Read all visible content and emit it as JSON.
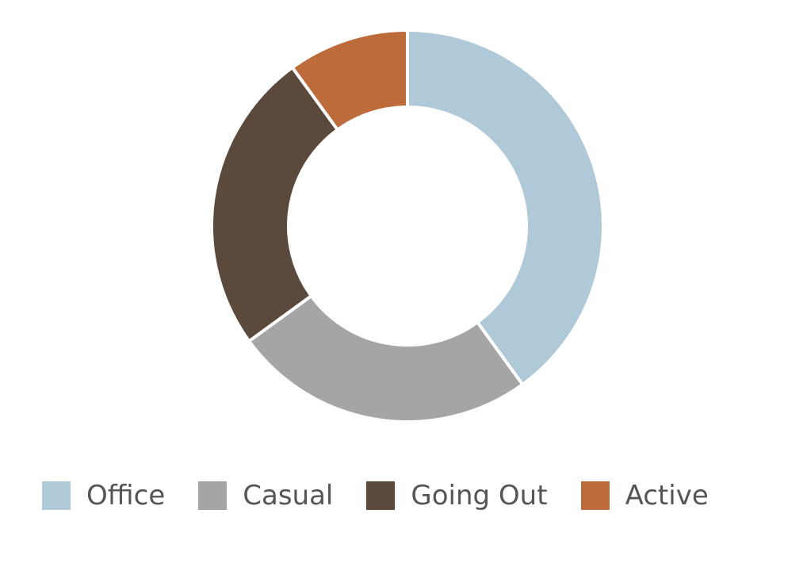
{
  "chart_data": {
    "type": "donut",
    "categories": [
      "Office",
      "Casual",
      "Going Out",
      "Active"
    ],
    "values": [
      40,
      25,
      25,
      10
    ],
    "colors": [
      "#b0c9d9",
      "#a5a5a5",
      "#5b4a3c",
      "#be6b3b"
    ],
    "legend": "bottom"
  }
}
